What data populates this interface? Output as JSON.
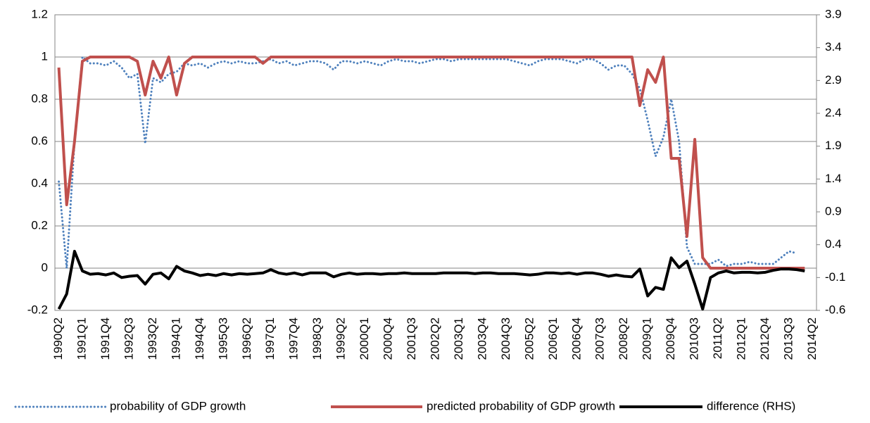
{
  "chart_data": {
    "type": "line",
    "categories": [
      "1990Q2",
      null,
      null,
      "1991Q1",
      null,
      null,
      "1991Q4",
      null,
      null,
      "1992Q3",
      null,
      null,
      "1993Q2",
      null,
      null,
      "1994Q1",
      null,
      null,
      "1994Q4",
      null,
      null,
      "1995Q3",
      null,
      null,
      "1996Q2",
      null,
      null,
      "1997Q1",
      null,
      null,
      "1997Q4",
      null,
      null,
      "1998Q3",
      null,
      null,
      "1999Q2",
      null,
      null,
      "2000Q1",
      null,
      null,
      "2000Q4",
      null,
      null,
      "2001Q3",
      null,
      null,
      "2002Q2",
      null,
      null,
      "2003Q1",
      null,
      null,
      "2003Q4",
      null,
      null,
      "2004Q3",
      null,
      null,
      "2005Q2",
      null,
      null,
      "2006Q1",
      null,
      null,
      "2006Q4",
      null,
      null,
      "2007Q3",
      null,
      null,
      "2008Q2",
      null,
      null,
      "2009Q1",
      null,
      null,
      "2009Q4",
      null,
      null,
      "2010Q3",
      null,
      null,
      "2011Q2",
      null,
      null,
      "2012Q1",
      null,
      null,
      "2012Q4",
      null,
      null,
      "2013Q3",
      null,
      null,
      "2014Q2"
    ],
    "series": [
      {
        "name": "probability of GDP growth",
        "color": "#4f81bd",
        "line_style": "dotted",
        "values": [
          0.41,
          0.0,
          0.6,
          1.0,
          0.97,
          0.97,
          0.96,
          0.98,
          0.95,
          0.9,
          0.92,
          0.59,
          0.9,
          0.88,
          0.92,
          0.93,
          0.97,
          0.96,
          0.97,
          0.95,
          0.97,
          0.98,
          0.97,
          0.98,
          0.97,
          0.97,
          0.98,
          0.99,
          0.97,
          0.98,
          0.96,
          0.97,
          0.98,
          0.98,
          0.97,
          0.94,
          0.98,
          0.98,
          0.97,
          0.98,
          0.97,
          0.96,
          0.98,
          0.99,
          0.98,
          0.98,
          0.97,
          0.98,
          0.99,
          0.99,
          0.98,
          0.99,
          0.99,
          0.99,
          0.99,
          0.99,
          0.99,
          0.99,
          0.98,
          0.97,
          0.96,
          0.98,
          0.99,
          0.99,
          0.99,
          0.98,
          0.97,
          0.99,
          0.99,
          0.97,
          0.94,
          0.96,
          0.96,
          0.92,
          0.85,
          0.7,
          0.53,
          0.62,
          0.8,
          0.6,
          0.1,
          0.02,
          0.02,
          0.02,
          0.04,
          0.01,
          0.02,
          0.02,
          0.03,
          0.02,
          0.02,
          0.02,
          0.05,
          0.08,
          0.07,
          null,
          null
        ]
      },
      {
        "name": "predicted probability of GDP growth",
        "color": "#c0504d",
        "line_style": "solid",
        "values": [
          0.95,
          0.3,
          0.6,
          0.98,
          1,
          1,
          1,
          1,
          1,
          1,
          0.98,
          0.82,
          0.98,
          0.9,
          1,
          0.82,
          0.97,
          1,
          1,
          1,
          1,
          1,
          1,
          1,
          1,
          1,
          0.97,
          1,
          1,
          1,
          1,
          1,
          1,
          1,
          1,
          1,
          1,
          1,
          1,
          1,
          1,
          1,
          1,
          1,
          1,
          1,
          1,
          1,
          1,
          1,
          1,
          1,
          1,
          1,
          1,
          1,
          1,
          1,
          1,
          1,
          1,
          1,
          1,
          1,
          1,
          1,
          1,
          1,
          1,
          1,
          1,
          1,
          1,
          1,
          0.77,
          0.94,
          0.88,
          1,
          0.52,
          0.52,
          0.15,
          0.61,
          0.05,
          0,
          0,
          0,
          0,
          0,
          0,
          0,
          0,
          0,
          0,
          0,
          0,
          0,
          null
        ]
      },
      {
        "name": "difference (RHS)",
        "color": "#000000",
        "line_style": "solid",
        "axis": "y2",
        "values": [
          -0.58,
          -0.35,
          0.3,
          0,
          -0.05,
          -0.04,
          -0.06,
          -0.03,
          -0.1,
          -0.08,
          -0.07,
          -0.2,
          -0.05,
          -0.03,
          -0.12,
          0.07,
          0.0,
          -0.03,
          -0.07,
          -0.05,
          -0.07,
          -0.04,
          -0.06,
          -0.04,
          -0.05,
          -0.04,
          -0.03,
          0.02,
          -0.03,
          -0.05,
          -0.03,
          -0.06,
          -0.03,
          -0.03,
          -0.03,
          -0.09,
          -0.05,
          -0.03,
          -0.05,
          -0.04,
          -0.04,
          -0.05,
          -0.04,
          -0.04,
          -0.03,
          -0.04,
          -0.04,
          -0.04,
          -0.04,
          -0.03,
          -0.03,
          -0.03,
          -0.03,
          -0.04,
          -0.03,
          -0.03,
          -0.04,
          -0.04,
          -0.04,
          -0.05,
          -0.06,
          -0.05,
          -0.03,
          -0.03,
          -0.04,
          -0.03,
          -0.05,
          -0.03,
          -0.03,
          -0.05,
          -0.08,
          -0.06,
          -0.08,
          -0.09,
          0.03,
          -0.38,
          -0.25,
          -0.28,
          0.2,
          0.05,
          0.15,
          -0.2,
          -0.58,
          -0.1,
          -0.03,
          0.0,
          -0.03,
          -0.02,
          -0.02,
          -0.03,
          -0.02,
          0.01,
          0.03,
          0.03,
          0.02,
          0.0,
          null
        ]
      }
    ],
    "ylim": [
      -0.2,
      1.2
    ],
    "yticks": [
      -0.2,
      0,
      0.2,
      0.4,
      0.6,
      0.8,
      1,
      1.2
    ],
    "y2lim": [
      -0.6,
      3.9
    ],
    "y2ticks": [
      -0.6,
      -0.1,
      0.4,
      0.9,
      1.4,
      1.9,
      2.4,
      2.9,
      3.4,
      3.9
    ],
    "grid": true,
    "legend": "bottom"
  }
}
